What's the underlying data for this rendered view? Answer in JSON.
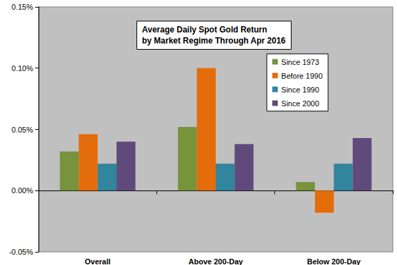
{
  "chart_data": {
    "type": "bar",
    "title": "Average Daily Spot Gold Return\nby Market Regime Through Apr 2016",
    "categories": [
      "Overall",
      "Above 200-Day",
      "Below 200-Day"
    ],
    "series": [
      {
        "name": "Since 1973",
        "color": "#77933C",
        "values": [
          0.032,
          0.052,
          0.007
        ]
      },
      {
        "name": "Before 1990",
        "color": "#E46C0A",
        "values": [
          0.046,
          0.1,
          -0.018
        ]
      },
      {
        "name": "Since 1990",
        "color": "#31859C",
        "values": [
          0.022,
          0.022,
          0.022
        ]
      },
      {
        "name": "Since 2000",
        "color": "#604A7B",
        "values": [
          0.04,
          0.038,
          0.043
        ]
      }
    ],
    "ylim": [
      -0.05,
      0.15
    ],
    "yticks": [
      {
        "value": -0.05,
        "label": "-0.05%"
      },
      {
        "value": 0,
        "label": "0.00%"
      },
      {
        "value": 0.05,
        "label": "0.05%"
      },
      {
        "value": 0.1,
        "label": "0.10%"
      },
      {
        "value": 0.15,
        "label": "0.15%"
      }
    ],
    "grid": false,
    "legend": "upper right"
  }
}
